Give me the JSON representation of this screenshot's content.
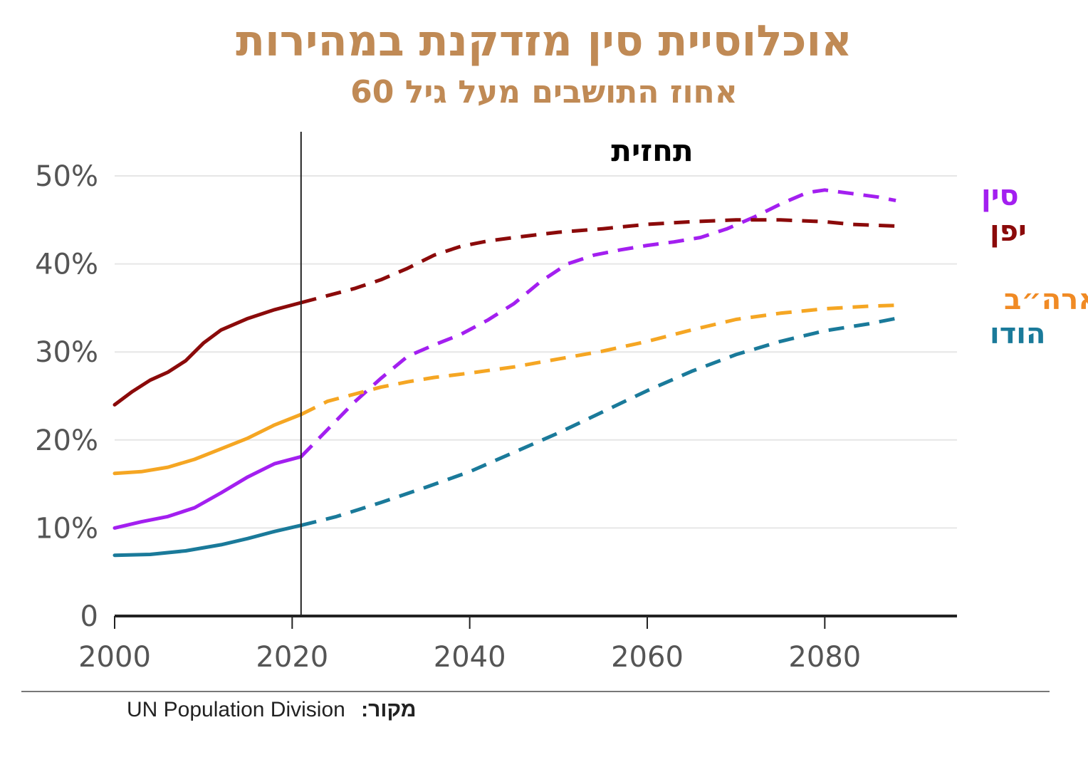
{
  "title": "אוכלוסיית סין מזדקנת במהירות",
  "subtitle": "אחוז התושבים מעל גיל 60",
  "source": {
    "label": "מקור:",
    "value": "UN Population Division"
  },
  "colors": {
    "title": "#c08a55",
    "grid": "#e6e6e6",
    "axis": "#222222",
    "tick_text": "#555555",
    "china": "#a31ff0",
    "japan": "#8b0a0a",
    "usa": "#f5a623",
    "india": "#1a7a9a"
  },
  "chart_data": {
    "type": "line",
    "title": "אוכלוסיית סין מזדקנת במהירות",
    "subtitle": "אחוז התושבים מעל גיל 60",
    "xlabel": "",
    "ylabel": "",
    "xlim": [
      2000,
      2095
    ],
    "ylim": [
      0,
      50
    ],
    "grid": true,
    "x_ticks": [
      2000,
      2020,
      2040,
      2060,
      2080
    ],
    "x_tick_labels": [
      "2000",
      "2020",
      "2040",
      "2060",
      "2080"
    ],
    "y_ticks": [
      0,
      10,
      20,
      30,
      40,
      50
    ],
    "y_tick_labels": [
      "0",
      "10%",
      "20%",
      "30%",
      "40%",
      "50%"
    ],
    "forecast_start": 2021,
    "forecast_label": "תחזית",
    "series": [
      {
        "name": "סין",
        "key": "china",
        "label_color": "#a31ff0",
        "x": [
          2000,
          2003,
          2006,
          2009,
          2012,
          2015,
          2018,
          2021,
          2024,
          2027,
          2030,
          2033,
          2036,
          2039,
          2042,
          2045,
          2048,
          2051,
          2054,
          2057,
          2060,
          2063,
          2066,
          2069,
          2072,
          2075,
          2078,
          2080,
          2083,
          2086,
          2088
        ],
        "values": [
          10.0,
          10.7,
          11.3,
          12.3,
          14.0,
          15.8,
          17.3,
          18.1,
          21.2,
          24.3,
          27.0,
          29.5,
          30.8,
          32.0,
          33.6,
          35.5,
          38.0,
          40.0,
          41.0,
          41.6,
          42.1,
          42.5,
          43.0,
          44.0,
          45.3,
          46.8,
          48.1,
          48.4,
          48.0,
          47.6,
          47.2
        ]
      },
      {
        "name": "יפן",
        "key": "japan",
        "label_color": "#8b0a0a",
        "x": [
          2000,
          2002,
          2004,
          2006,
          2008,
          2010,
          2012,
          2015,
          2018,
          2021,
          2024,
          2027,
          2030,
          2033,
          2036,
          2039,
          2042,
          2045,
          2050,
          2055,
          2060,
          2065,
          2070,
          2075,
          2080,
          2083,
          2088
        ],
        "values": [
          24.0,
          25.5,
          26.8,
          27.7,
          29.0,
          31.0,
          32.5,
          33.8,
          34.8,
          35.6,
          36.4,
          37.2,
          38.2,
          39.5,
          41.0,
          42.0,
          42.6,
          43.0,
          43.6,
          44.0,
          44.5,
          44.8,
          45.0,
          45.0,
          44.8,
          44.5,
          44.3
        ]
      },
      {
        "name": "ארה״ב",
        "key": "usa",
        "label_color": "#f08a24",
        "x": [
          2000,
          2003,
          2006,
          2009,
          2012,
          2015,
          2018,
          2021,
          2024,
          2027,
          2030,
          2033,
          2036,
          2040,
          2045,
          2050,
          2055,
          2060,
          2065,
          2070,
          2075,
          2080,
          2085,
          2088
        ],
        "values": [
          16.2,
          16.4,
          16.9,
          17.8,
          19.0,
          20.2,
          21.7,
          22.9,
          24.4,
          25.2,
          26.0,
          26.6,
          27.1,
          27.6,
          28.3,
          29.2,
          30.1,
          31.2,
          32.5,
          33.7,
          34.4,
          34.9,
          35.2,
          35.3
        ]
      },
      {
        "name": "הודו",
        "key": "india",
        "label_color": "#1a7a9a",
        "x": [
          2000,
          2004,
          2008,
          2012,
          2015,
          2018,
          2021,
          2025,
          2030,
          2035,
          2040,
          2045,
          2050,
          2055,
          2060,
          2065,
          2070,
          2075,
          2080,
          2085,
          2088
        ],
        "values": [
          6.9,
          7.0,
          7.4,
          8.1,
          8.8,
          9.6,
          10.3,
          11.3,
          12.9,
          14.6,
          16.4,
          18.6,
          20.8,
          23.2,
          25.6,
          27.8,
          29.7,
          31.2,
          32.4,
          33.2,
          33.8
        ]
      }
    ]
  }
}
